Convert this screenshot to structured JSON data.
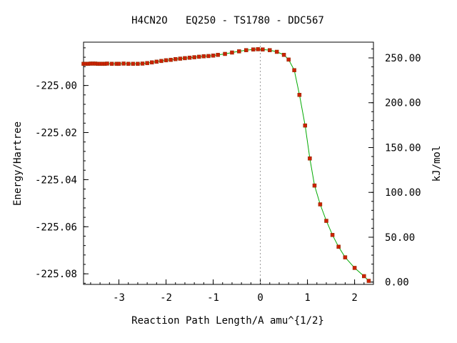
{
  "chart_data": {
    "type": "line",
    "title": "H4CN2O   EQ250 - TS1780 - DDC567",
    "xlabel": "Reaction Path Length/A amu^{1/2}",
    "ylabel_left": "Energy/Hartree",
    "ylabel_right": "kJ/mol",
    "xlim": [
      -3.75,
      2.4
    ],
    "ylim": [
      -225.0845,
      -224.9816
    ],
    "xticks": [
      -3,
      -2,
      -1,
      0,
      1,
      2
    ],
    "xtick_labels": [
      "-3",
      "-2",
      "-1",
      "0",
      "1",
      "2"
    ],
    "yticks_left": [
      -225.08,
      -225.06,
      -225.04,
      -225.02,
      -225.0
    ],
    "ytick_labels_left": [
      "-225.08",
      "-225.06",
      "-225.04",
      "-225.02",
      "-225.00"
    ],
    "yticks_right_kj": [
      0,
      50,
      100,
      150,
      200,
      250
    ],
    "ytick_labels_right": [
      "0.00",
      "50.00",
      "100.00",
      "150.00",
      "200.00",
      "250.00"
    ],
    "right_axis_zero_hartree": -225.0835,
    "hartree_to_kj": 2625.5,
    "vline_x": 0,
    "line_color": "#00aa00",
    "marker_color": "#cc2200",
    "vline_color": "#999999",
    "series": [
      {
        "x": [
          -3.75,
          -3.7,
          -3.65,
          -3.6,
          -3.55,
          -3.5,
          -3.45,
          -3.4,
          -3.35,
          -3.3,
          -3.25,
          -3.15,
          -3.05,
          -3.0,
          -2.9,
          -2.8,
          -2.7,
          -2.6,
          -2.5,
          -2.4,
          -2.3,
          -2.2,
          -2.1,
          -2.0,
          -1.9,
          -1.8,
          -1.7,
          -1.6,
          -1.5,
          -1.4,
          -1.3,
          -1.2,
          -1.1,
          -1.0,
          -0.9,
          -0.75,
          -0.6,
          -0.45,
          -0.3,
          -0.15,
          -0.05,
          0.05,
          0.2,
          0.35,
          0.5,
          0.6,
          0.72,
          0.83,
          0.95,
          1.05,
          1.15,
          1.27,
          1.4,
          1.53,
          1.66,
          1.8,
          2.0,
          2.2,
          2.3
        ],
        "y": [
          -224.9908,
          -224.9908,
          -224.9908,
          -224.9907,
          -224.9907,
          -224.9907,
          -224.9908,
          -224.9908,
          -224.9908,
          -224.9908,
          -224.9907,
          -224.9908,
          -224.9908,
          -224.9908,
          -224.9907,
          -224.9908,
          -224.9908,
          -224.9908,
          -224.9907,
          -224.9905,
          -224.9902,
          -224.9899,
          -224.9896,
          -224.9893,
          -224.9891,
          -224.9888,
          -224.9886,
          -224.9884,
          -224.9882,
          -224.988,
          -224.9878,
          -224.9876,
          -224.9875,
          -224.9873,
          -224.987,
          -224.9866,
          -224.986,
          -224.9855,
          -224.985,
          -224.9847,
          -224.9846,
          -224.9847,
          -224.985,
          -224.9857,
          -224.987,
          -224.989,
          -224.9935,
          -225.004,
          -225.017,
          -225.031,
          -225.0425,
          -225.0505,
          -225.0575,
          -225.0635,
          -225.0685,
          -225.073,
          -225.0775,
          -225.081,
          -225.083
        ]
      }
    ]
  }
}
